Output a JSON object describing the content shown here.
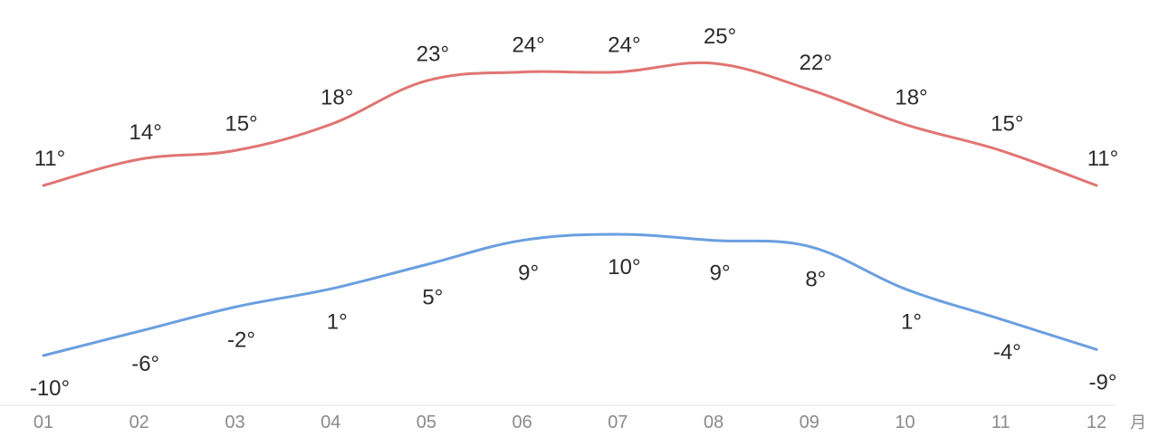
{
  "chart_data": {
    "type": "line",
    "categories": [
      "01",
      "02",
      "03",
      "04",
      "05",
      "06",
      "07",
      "08",
      "09",
      "10",
      "11",
      "12"
    ],
    "x_unit": "月",
    "series": [
      {
        "key": "high",
        "values": [
          11,
          14,
          15,
          18,
          23,
          24,
          24,
          25,
          22,
          18,
          15,
          11
        ],
        "labels": [
          "11°",
          "14°",
          "15°",
          "18°",
          "23°",
          "24°",
          "24°",
          "25°",
          "22°",
          "18°",
          "15°",
          "11°"
        ],
        "color": "#e07572"
      },
      {
        "key": "low",
        "values": [
          -10,
          -6,
          -2,
          1,
          5,
          9,
          10,
          9,
          8,
          1,
          -4,
          -9
        ],
        "labels": [
          "-10°",
          "-6°",
          "-2°",
          "1°",
          "5°",
          "9°",
          "10°",
          "9°",
          "8°",
          "1°",
          "-4°",
          "-9°"
        ],
        "color": "#6a9fe0"
      }
    ],
    "axis_color": "#e6e6e6",
    "grid": false,
    "legend": "none"
  }
}
